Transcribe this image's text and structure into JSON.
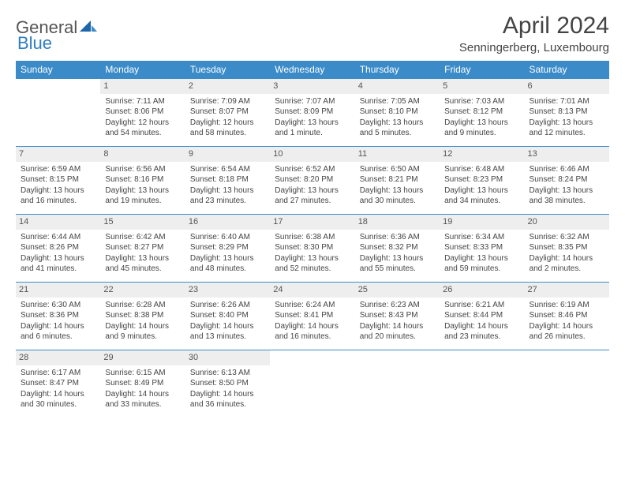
{
  "logo": {
    "part1": "General",
    "part2": "Blue"
  },
  "title": "April 2024",
  "location": "Senningerberg, Luxembourg",
  "colors": {
    "header_bg": "#3b8bc9",
    "header_text": "#ffffff",
    "daynum_bg": "#eeeeee",
    "text": "#444444",
    "rule": "#3b8bc9"
  },
  "typography": {
    "title_size": 30,
    "location_size": 15,
    "dayheader_size": 12,
    "cell_size": 10
  },
  "weekdays": [
    "Sunday",
    "Monday",
    "Tuesday",
    "Wednesday",
    "Thursday",
    "Friday",
    "Saturday"
  ],
  "weeks": [
    [
      null,
      {
        "n": "1",
        "sr": "Sunrise: 7:11 AM",
        "ss": "Sunset: 8:06 PM",
        "d1": "Daylight: 12 hours",
        "d2": "and 54 minutes."
      },
      {
        "n": "2",
        "sr": "Sunrise: 7:09 AM",
        "ss": "Sunset: 8:07 PM",
        "d1": "Daylight: 12 hours",
        "d2": "and 58 minutes."
      },
      {
        "n": "3",
        "sr": "Sunrise: 7:07 AM",
        "ss": "Sunset: 8:09 PM",
        "d1": "Daylight: 13 hours",
        "d2": "and 1 minute."
      },
      {
        "n": "4",
        "sr": "Sunrise: 7:05 AM",
        "ss": "Sunset: 8:10 PM",
        "d1": "Daylight: 13 hours",
        "d2": "and 5 minutes."
      },
      {
        "n": "5",
        "sr": "Sunrise: 7:03 AM",
        "ss": "Sunset: 8:12 PM",
        "d1": "Daylight: 13 hours",
        "d2": "and 9 minutes."
      },
      {
        "n": "6",
        "sr": "Sunrise: 7:01 AM",
        "ss": "Sunset: 8:13 PM",
        "d1": "Daylight: 13 hours",
        "d2": "and 12 minutes."
      }
    ],
    [
      {
        "n": "7",
        "sr": "Sunrise: 6:59 AM",
        "ss": "Sunset: 8:15 PM",
        "d1": "Daylight: 13 hours",
        "d2": "and 16 minutes."
      },
      {
        "n": "8",
        "sr": "Sunrise: 6:56 AM",
        "ss": "Sunset: 8:16 PM",
        "d1": "Daylight: 13 hours",
        "d2": "and 19 minutes."
      },
      {
        "n": "9",
        "sr": "Sunrise: 6:54 AM",
        "ss": "Sunset: 8:18 PM",
        "d1": "Daylight: 13 hours",
        "d2": "and 23 minutes."
      },
      {
        "n": "10",
        "sr": "Sunrise: 6:52 AM",
        "ss": "Sunset: 8:20 PM",
        "d1": "Daylight: 13 hours",
        "d2": "and 27 minutes."
      },
      {
        "n": "11",
        "sr": "Sunrise: 6:50 AM",
        "ss": "Sunset: 8:21 PM",
        "d1": "Daylight: 13 hours",
        "d2": "and 30 minutes."
      },
      {
        "n": "12",
        "sr": "Sunrise: 6:48 AM",
        "ss": "Sunset: 8:23 PM",
        "d1": "Daylight: 13 hours",
        "d2": "and 34 minutes."
      },
      {
        "n": "13",
        "sr": "Sunrise: 6:46 AM",
        "ss": "Sunset: 8:24 PM",
        "d1": "Daylight: 13 hours",
        "d2": "and 38 minutes."
      }
    ],
    [
      {
        "n": "14",
        "sr": "Sunrise: 6:44 AM",
        "ss": "Sunset: 8:26 PM",
        "d1": "Daylight: 13 hours",
        "d2": "and 41 minutes."
      },
      {
        "n": "15",
        "sr": "Sunrise: 6:42 AM",
        "ss": "Sunset: 8:27 PM",
        "d1": "Daylight: 13 hours",
        "d2": "and 45 minutes."
      },
      {
        "n": "16",
        "sr": "Sunrise: 6:40 AM",
        "ss": "Sunset: 8:29 PM",
        "d1": "Daylight: 13 hours",
        "d2": "and 48 minutes."
      },
      {
        "n": "17",
        "sr": "Sunrise: 6:38 AM",
        "ss": "Sunset: 8:30 PM",
        "d1": "Daylight: 13 hours",
        "d2": "and 52 minutes."
      },
      {
        "n": "18",
        "sr": "Sunrise: 6:36 AM",
        "ss": "Sunset: 8:32 PM",
        "d1": "Daylight: 13 hours",
        "d2": "and 55 minutes."
      },
      {
        "n": "19",
        "sr": "Sunrise: 6:34 AM",
        "ss": "Sunset: 8:33 PM",
        "d1": "Daylight: 13 hours",
        "d2": "and 59 minutes."
      },
      {
        "n": "20",
        "sr": "Sunrise: 6:32 AM",
        "ss": "Sunset: 8:35 PM",
        "d1": "Daylight: 14 hours",
        "d2": "and 2 minutes."
      }
    ],
    [
      {
        "n": "21",
        "sr": "Sunrise: 6:30 AM",
        "ss": "Sunset: 8:36 PM",
        "d1": "Daylight: 14 hours",
        "d2": "and 6 minutes."
      },
      {
        "n": "22",
        "sr": "Sunrise: 6:28 AM",
        "ss": "Sunset: 8:38 PM",
        "d1": "Daylight: 14 hours",
        "d2": "and 9 minutes."
      },
      {
        "n": "23",
        "sr": "Sunrise: 6:26 AM",
        "ss": "Sunset: 8:40 PM",
        "d1": "Daylight: 14 hours",
        "d2": "and 13 minutes."
      },
      {
        "n": "24",
        "sr": "Sunrise: 6:24 AM",
        "ss": "Sunset: 8:41 PM",
        "d1": "Daylight: 14 hours",
        "d2": "and 16 minutes."
      },
      {
        "n": "25",
        "sr": "Sunrise: 6:23 AM",
        "ss": "Sunset: 8:43 PM",
        "d1": "Daylight: 14 hours",
        "d2": "and 20 minutes."
      },
      {
        "n": "26",
        "sr": "Sunrise: 6:21 AM",
        "ss": "Sunset: 8:44 PM",
        "d1": "Daylight: 14 hours",
        "d2": "and 23 minutes."
      },
      {
        "n": "27",
        "sr": "Sunrise: 6:19 AM",
        "ss": "Sunset: 8:46 PM",
        "d1": "Daylight: 14 hours",
        "d2": "and 26 minutes."
      }
    ],
    [
      {
        "n": "28",
        "sr": "Sunrise: 6:17 AM",
        "ss": "Sunset: 8:47 PM",
        "d1": "Daylight: 14 hours",
        "d2": "and 30 minutes."
      },
      {
        "n": "29",
        "sr": "Sunrise: 6:15 AM",
        "ss": "Sunset: 8:49 PM",
        "d1": "Daylight: 14 hours",
        "d2": "and 33 minutes."
      },
      {
        "n": "30",
        "sr": "Sunrise: 6:13 AM",
        "ss": "Sunset: 8:50 PM",
        "d1": "Daylight: 14 hours",
        "d2": "and 36 minutes."
      },
      null,
      null,
      null,
      null
    ]
  ]
}
